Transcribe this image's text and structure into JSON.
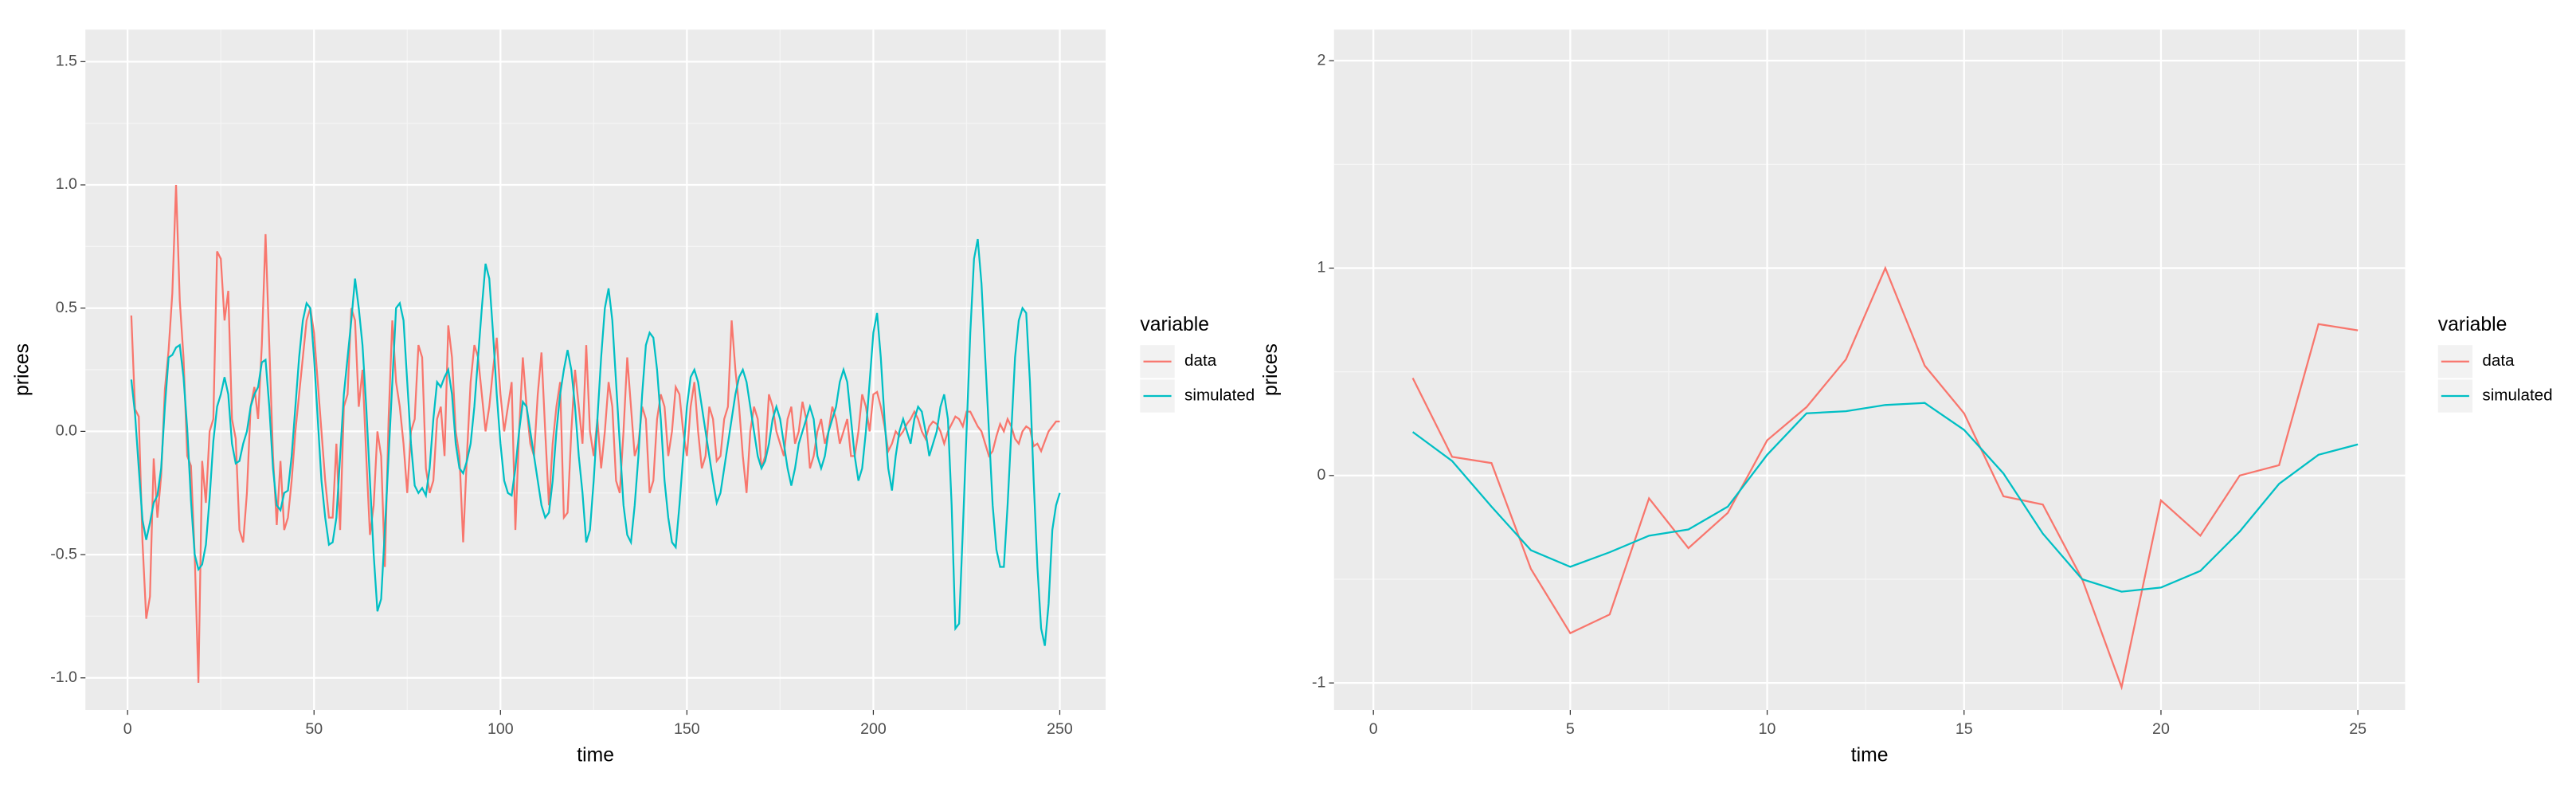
{
  "chart_data": [
    {
      "type": "line",
      "xlabel": "time",
      "ylabel": "prices",
      "legend_title": "variable",
      "legend": "right",
      "grid": true,
      "xlim": [
        -11.3,
        262.3
      ],
      "ylim": [
        -1.13,
        1.63
      ],
      "xticks": [
        0,
        50,
        100,
        150,
        200,
        250
      ],
      "yticks": [
        {
          "value": -1,
          "label": "-1.0"
        },
        {
          "value": -0.5,
          "label": "-0.5"
        },
        {
          "value": 0,
          "label": "0.0"
        },
        {
          "value": 0.5,
          "label": "0.5"
        },
        {
          "value": 1,
          "label": "1.0"
        },
        {
          "value": 1.5,
          "label": "1.5"
        }
      ],
      "x": [
        1,
        2,
        3,
        4,
        5,
        6,
        7,
        8,
        9,
        10,
        11,
        12,
        13,
        14,
        15,
        16,
        17,
        18,
        19,
        20,
        21,
        22,
        23,
        24,
        25,
        26,
        27,
        28,
        29,
        30,
        31,
        32,
        33,
        34,
        35,
        36,
        37,
        38,
        39,
        40,
        41,
        42,
        43,
        44,
        45,
        46,
        47,
        48,
        49,
        50,
        51,
        52,
        53,
        54,
        55,
        56,
        57,
        58,
        59,
        60,
        61,
        62,
        63,
        64,
        65,
        66,
        67,
        68,
        69,
        70,
        71,
        72,
        73,
        74,
        75,
        76,
        77,
        78,
        79,
        80,
        81,
        82,
        83,
        84,
        85,
        86,
        87,
        88,
        89,
        90,
        91,
        92,
        93,
        94,
        95,
        96,
        97,
        98,
        99,
        100,
        101,
        102,
        103,
        104,
        105,
        106,
        107,
        108,
        109,
        110,
        111,
        112,
        113,
        114,
        115,
        116,
        117,
        118,
        119,
        120,
        121,
        122,
        123,
        124,
        125,
        126,
        127,
        128,
        129,
        130,
        131,
        132,
        133,
        134,
        135,
        136,
        137,
        138,
        139,
        140,
        141,
        142,
        143,
        144,
        145,
        146,
        147,
        148,
        149,
        150,
        151,
        152,
        153,
        154,
        155,
        156,
        157,
        158,
        159,
        160,
        161,
        162,
        163,
        164,
        165,
        166,
        167,
        168,
        169,
        170,
        171,
        172,
        173,
        174,
        175,
        176,
        177,
        178,
        179,
        180,
        181,
        182,
        183,
        184,
        185,
        186,
        187,
        188,
        189,
        190,
        191,
        192,
        193,
        194,
        195,
        196,
        197,
        198,
        199,
        200,
        201,
        202,
        203,
        204,
        205,
        206,
        207,
        208,
        209,
        210,
        211,
        212,
        213,
        214,
        215,
        216,
        217,
        218,
        219,
        220,
        221,
        222,
        223,
        224,
        225,
        226,
        227,
        228,
        229,
        230,
        231,
        232,
        233,
        234,
        235,
        236,
        237,
        238,
        239,
        240,
        241,
        242,
        243,
        244,
        245,
        246,
        247,
        248,
        249,
        250
      ],
      "series": [
        {
          "name": "data",
          "color": "#F8766D",
          "values": [
            0.47,
            0.09,
            0.06,
            -0.45,
            -0.76,
            -0.67,
            -0.11,
            -0.35,
            -0.18,
            0.17,
            0.33,
            0.56,
            1.0,
            0.53,
            0.3,
            -0.1,
            -0.14,
            -0.5,
            -1.02,
            -0.12,
            -0.29,
            0.0,
            0.05,
            0.73,
            0.7,
            0.45,
            0.57,
            0.05,
            -0.03,
            -0.4,
            -0.45,
            -0.25,
            0.1,
            0.18,
            0.05,
            0.35,
            0.8,
            0.35,
            -0.1,
            -0.38,
            -0.12,
            -0.4,
            -0.35,
            -0.2,
            0.0,
            0.15,
            0.3,
            0.45,
            0.5,
            0.4,
            0.2,
            0.0,
            -0.2,
            -0.35,
            -0.35,
            -0.05,
            -0.4,
            0.1,
            0.15,
            0.5,
            0.45,
            0.1,
            0.25,
            -0.1,
            -0.42,
            -0.3,
            0.0,
            -0.1,
            -0.55,
            0.05,
            0.45,
            0.2,
            0.1,
            -0.05,
            -0.25,
            0.0,
            0.05,
            0.35,
            0.3,
            -0.15,
            -0.25,
            -0.2,
            0.05,
            0.1,
            -0.1,
            0.43,
            0.3,
            0.0,
            -0.1,
            -0.45,
            -0.1,
            0.2,
            0.35,
            0.3,
            0.15,
            0.0,
            0.1,
            0.25,
            0.38,
            0.15,
            0.0,
            0.1,
            0.2,
            -0.4,
            0.0,
            0.3,
            0.1,
            -0.05,
            -0.1,
            0.15,
            0.32,
            0.0,
            -0.3,
            -0.05,
            0.1,
            0.2,
            -0.35,
            -0.33,
            0.0,
            0.25,
            0.1,
            -0.05,
            0.35,
            0.0,
            -0.1,
            0.05,
            -0.15,
            0.0,
            0.2,
            0.1,
            -0.2,
            -0.25,
            0.0,
            0.3,
            0.1,
            -0.1,
            -0.05,
            0.1,
            0.05,
            -0.25,
            -0.2,
            0.05,
            0.15,
            0.1,
            -0.1,
            0.0,
            0.18,
            0.15,
            0.0,
            -0.1,
            0.1,
            0.2,
            0.0,
            -0.15,
            -0.1,
            0.1,
            0.05,
            -0.12,
            -0.1,
            0.05,
            0.1,
            0.45,
            0.25,
            0.1,
            -0.1,
            -0.25,
            0.0,
            0.1,
            0.05,
            -0.15,
            -0.1,
            0.15,
            0.1,
            0.0,
            -0.05,
            -0.1,
            0.05,
            0.1,
            -0.05,
            0.0,
            0.12,
            0.05,
            -0.15,
            -0.1,
            0.0,
            0.05,
            -0.05,
            0.0,
            0.1,
            0.05,
            -0.05,
            0.0,
            0.05,
            -0.1,
            -0.1,
            0.0,
            0.15,
            0.1,
            0.0,
            0.15,
            0.16,
            0.1,
            0.02,
            -0.08,
            -0.05,
            0.0,
            -0.02,
            0.0,
            0.03,
            0.05,
            0.08,
            0.05,
            0.0,
            -0.03,
            0.02,
            0.04,
            0.03,
            0.0,
            -0.05,
            0.0,
            0.03,
            0.06,
            0.05,
            0.02,
            0.08,
            0.08,
            0.05,
            0.02,
            0.0,
            -0.05,
            -0.1,
            -0.08,
            -0.02,
            0.03,
            0.0,
            0.05,
            0.02,
            -0.03,
            -0.05,
            0.0,
            0.02,
            0.01,
            -0.06,
            -0.05,
            -0.08,
            -0.04,
            0.0,
            0.02,
            0.04,
            0.04
          ]
        },
        {
          "name": "simulated",
          "color": "#00BFC4",
          "values": [
            0.21,
            0.07,
            -0.15,
            -0.36,
            -0.44,
            -0.37,
            -0.29,
            -0.26,
            -0.15,
            0.1,
            0.3,
            0.31,
            0.34,
            0.35,
            0.22,
            0.01,
            -0.28,
            -0.5,
            -0.56,
            -0.54,
            -0.46,
            -0.27,
            -0.04,
            0.1,
            0.15,
            0.22,
            0.15,
            -0.05,
            -0.13,
            -0.12,
            -0.05,
            0.0,
            0.1,
            0.15,
            0.18,
            0.28,
            0.29,
            0.1,
            -0.15,
            -0.3,
            -0.32,
            -0.25,
            -0.24,
            -0.1,
            0.1,
            0.3,
            0.45,
            0.52,
            0.5,
            0.3,
            0.05,
            -0.2,
            -0.35,
            -0.46,
            -0.45,
            -0.35,
            -0.1,
            0.15,
            0.3,
            0.45,
            0.62,
            0.5,
            0.35,
            0.1,
            -0.2,
            -0.5,
            -0.73,
            -0.68,
            -0.4,
            -0.1,
            0.2,
            0.5,
            0.52,
            0.45,
            0.2,
            -0.05,
            -0.22,
            -0.25,
            -0.23,
            -0.26,
            -0.15,
            0.05,
            0.2,
            0.18,
            0.22,
            0.25,
            0.15,
            -0.05,
            -0.15,
            -0.17,
            -0.12,
            -0.05,
            0.1,
            0.3,
            0.5,
            0.68,
            0.62,
            0.4,
            0.15,
            -0.05,
            -0.2,
            -0.25,
            -0.26,
            -0.15,
            0.0,
            0.12,
            0.1,
            0.0,
            -0.1,
            -0.2,
            -0.3,
            -0.35,
            -0.33,
            -0.2,
            0.0,
            0.15,
            0.25,
            0.33,
            0.25,
            0.1,
            -0.1,
            -0.25,
            -0.45,
            -0.4,
            -0.2,
            0.05,
            0.3,
            0.5,
            0.58,
            0.45,
            0.2,
            -0.05,
            -0.3,
            -0.42,
            -0.45,
            -0.3,
            -0.1,
            0.15,
            0.35,
            0.4,
            0.38,
            0.25,
            0.05,
            -0.2,
            -0.35,
            -0.45,
            -0.47,
            -0.3,
            -0.1,
            0.1,
            0.22,
            0.25,
            0.2,
            0.1,
            0.0,
            -0.1,
            -0.2,
            -0.29,
            -0.25,
            -0.15,
            -0.05,
            0.05,
            0.15,
            0.22,
            0.25,
            0.2,
            0.1,
            0.0,
            -0.1,
            -0.15,
            -0.12,
            -0.05,
            0.05,
            0.1,
            0.05,
            -0.05,
            -0.15,
            -0.22,
            -0.15,
            -0.05,
            0.0,
            0.05,
            0.1,
            0.05,
            -0.1,
            -0.15,
            -0.1,
            0.0,
            0.05,
            0.1,
            0.2,
            0.25,
            0.2,
            0.05,
            -0.1,
            -0.2,
            -0.15,
            0.0,
            0.2,
            0.4,
            0.48,
            0.3,
            0.05,
            -0.15,
            -0.24,
            -0.1,
            0.0,
            0.05,
            0.0,
            -0.05,
            0.05,
            0.1,
            0.08,
            0.0,
            -0.1,
            -0.05,
            0.0,
            0.1,
            0.15,
            0.05,
            -0.3,
            -0.8,
            -0.78,
            -0.4,
            0.0,
            0.4,
            0.7,
            0.78,
            0.6,
            0.3,
            0.0,
            -0.3,
            -0.48,
            -0.55,
            -0.55,
            -0.3,
            0.0,
            0.3,
            0.45,
            0.5,
            0.48,
            0.2,
            -0.2,
            -0.55,
            -0.8,
            -0.87,
            -0.7,
            -0.4,
            -0.3,
            -0.25
          ]
        }
      ]
    },
    {
      "type": "line",
      "xlabel": "time",
      "ylabel": "prices",
      "legend_title": "variable",
      "legend": "right",
      "grid": true,
      "xlim": [
        -1.0,
        26.2
      ],
      "ylim": [
        -1.13,
        2.15
      ],
      "xticks": [
        0,
        5,
        10,
        15,
        20,
        25
      ],
      "yticks": [
        -1,
        0,
        1,
        2
      ],
      "x": [
        1,
        2,
        3,
        4,
        5,
        6,
        7,
        8,
        9,
        10,
        11,
        12,
        13,
        14,
        15,
        16,
        17,
        18,
        19,
        20,
        21,
        22,
        23,
        24,
        25
      ],
      "series": [
        {
          "name": "data",
          "color": "#F8766D",
          "values": [
            0.47,
            0.09,
            0.06,
            -0.45,
            -0.76,
            -0.67,
            -0.11,
            -0.35,
            -0.18,
            0.17,
            0.33,
            0.56,
            1.0,
            0.53,
            0.3,
            -0.1,
            -0.14,
            -0.5,
            -1.02,
            -0.12,
            -0.29,
            0.0,
            0.05,
            0.73,
            0.7
          ]
        },
        {
          "name": "simulated",
          "color": "#00BFC4",
          "values": [
            0.21,
            0.07,
            -0.15,
            -0.36,
            -0.44,
            -0.37,
            -0.29,
            -0.26,
            -0.15,
            0.1,
            0.3,
            0.31,
            0.34,
            0.35,
            0.22,
            0.01,
            -0.28,
            -0.5,
            -0.56,
            -0.54,
            -0.46,
            -0.27,
            -0.04,
            0.1,
            0.15
          ]
        }
      ]
    }
  ]
}
